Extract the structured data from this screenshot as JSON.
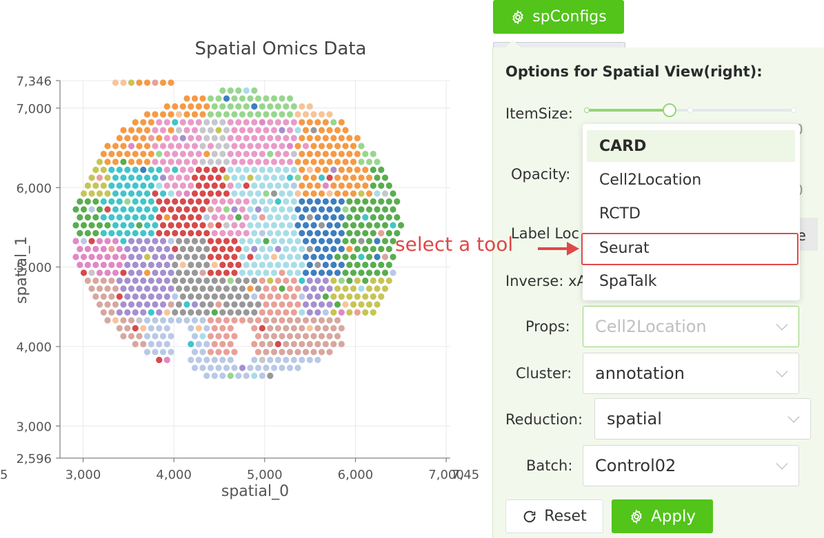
{
  "chart_data": {
    "type": "scatter",
    "title": "Spatial Omics Data",
    "xlabel": "spatial_0",
    "ylabel": "spatial_1",
    "xlim": [
      2745,
      7045
    ],
    "ylim": [
      2596,
      7346
    ],
    "xticks": [
      3000,
      4000,
      5000,
      6000,
      7000
    ],
    "xtick_labels": [
      "3,000",
      "4,000",
      "5,000",
      "6,000",
      "7,000"
    ],
    "x_edge_labels": [
      "5",
      "7,45"
    ],
    "yticks": [
      2596,
      3000,
      4000,
      5000,
      6000,
      7000,
      7346
    ],
    "ytick_labels": [
      "2,596",
      "3,000",
      "4,000",
      "5,000",
      "6,000",
      "7,000",
      "7,346"
    ],
    "grid": true,
    "series_note": "spatial spots colored by cluster annotation",
    "colors": [
      "#f7c49a",
      "#f59a45",
      "#98d68f",
      "#58ad4e",
      "#c7c455",
      "#3fc5cb",
      "#e99bc7",
      "#d64a4b",
      "#a7dde8",
      "#c5c7cb",
      "#a58fd0",
      "#d6a79f",
      "#989898",
      "#b8c9e6",
      "#e9a097",
      "#3d7ec0",
      "#e088c5"
    ]
  },
  "toolbar": {
    "spconfigs_label": "spConfigs",
    "gear_icon": "gear-icon"
  },
  "panel": {
    "title": "Options for Spatial View(right):",
    "item_size_label": "ItemSize:",
    "opacity_label": "Opacity:",
    "label_loc_label": "Label Loc",
    "inverse_label": "Inverse: xA",
    "props_label": "Props:",
    "props_value": "Cell2Location",
    "cluster_label": "Cluster:",
    "cluster_value": "annotation",
    "reduction_label": "Reduction:",
    "reduction_value": "spatial",
    "batch_label": "Batch:",
    "batch_value": "Control02",
    "frag_item_size": "0",
    "frag_opacity": "0",
    "frag_label_loc": "e",
    "reset_label": "Reset",
    "apply_label": "Apply"
  },
  "slider": {
    "value_fraction": 0.4
  },
  "dropdown": {
    "items": [
      "CARD",
      "Cell2Location",
      "RCTD",
      "Seurat",
      "SpaTalk"
    ],
    "active_index": 0
  },
  "annotation": {
    "text": "select a tool",
    "color": "#e04848"
  }
}
